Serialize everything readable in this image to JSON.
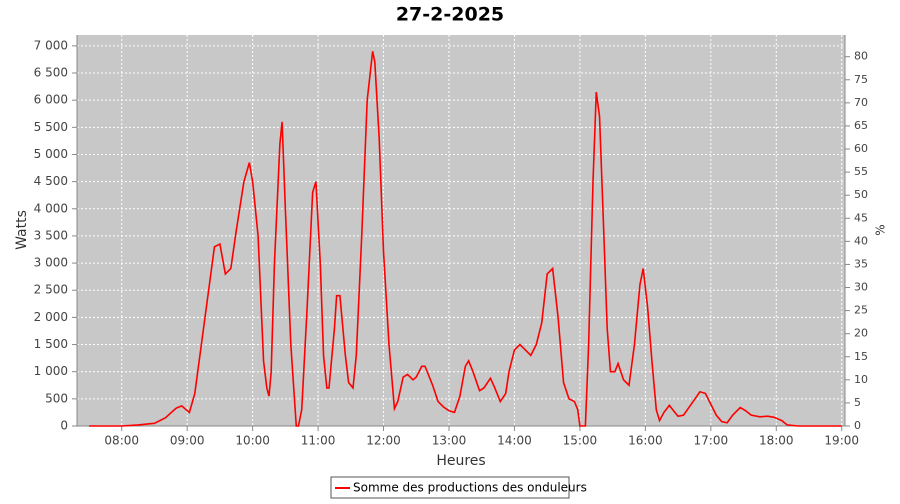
{
  "chart_data": {
    "type": "line",
    "title": "27-2-2025",
    "xlabel": "Heures",
    "ylabel": "Watts",
    "y2label": "%",
    "grid": true,
    "legend": "bottom",
    "xlim": [
      "07:19",
      "19:03"
    ],
    "xticks": [
      "08:00",
      "09:00",
      "10:00",
      "11:00",
      "12:00",
      "13:00",
      "14:00",
      "15:00",
      "16:00",
      "17:00",
      "18:00",
      "19:00"
    ],
    "ylim": [
      0,
      7200
    ],
    "yticks": [
      0,
      500,
      {
        "value": 1000,
        "label": "1 000"
      },
      {
        "value": 1500,
        "label": "1 500"
      },
      {
        "value": 2000,
        "label": "2 000"
      },
      {
        "value": 2500,
        "label": "2 500"
      },
      {
        "value": 3000,
        "label": "3 000"
      },
      {
        "value": 3500,
        "label": "3 500"
      },
      {
        "value": 4000,
        "label": "4 000"
      },
      {
        "value": 4500,
        "label": "4 500"
      },
      {
        "value": 5000,
        "label": "5 000"
      },
      {
        "value": 5500,
        "label": "5 500"
      },
      {
        "value": 6000,
        "label": "6 000"
      },
      {
        "value": 6500,
        "label": "6 500"
      },
      {
        "value": 7000,
        "label": "7 000"
      }
    ],
    "y2lim": [
      0,
      84.7
    ],
    "y2ticks": [
      0,
      5,
      10,
      15,
      20,
      25,
      30,
      35,
      40,
      45,
      50,
      55,
      60,
      65,
      70,
      75,
      80
    ],
    "x": [
      "07:30",
      "08:00",
      "08:15",
      "08:30",
      "08:40",
      "08:50",
      "08:55",
      "09:02",
      "09:07",
      "09:15",
      "09:25",
      "09:30",
      "09:35",
      "09:40",
      "09:45",
      "09:52",
      "09:57",
      "10:00",
      "10:05",
      "10:10",
      "10:13",
      "10:15",
      "10:17",
      "10:20",
      "10:25",
      "10:27",
      "10:30",
      "10:35",
      "10:40",
      "10:42",
      "10:45",
      "10:50",
      "10:55",
      "10:58",
      "11:02",
      "11:05",
      "11:08",
      "11:10",
      "11:15",
      "11:17",
      "11:20",
      "11:25",
      "11:28",
      "11:32",
      "11:35",
      "11:40",
      "11:45",
      "11:50",
      "11:52",
      "11:56",
      "12:00",
      "12:05",
      "12:10",
      "12:13",
      "12:18",
      "12:22",
      "12:27",
      "12:30",
      "12:35",
      "12:38",
      "12:45",
      "12:50",
      "12:55",
      "13:00",
      "13:05",
      "13:10",
      "13:15",
      "13:18",
      "13:22",
      "13:28",
      "13:32",
      "13:38",
      "13:42",
      "13:47",
      "13:52",
      "13:55",
      "14:00",
      "14:05",
      "14:10",
      "14:15",
      "14:20",
      "14:25",
      "14:30",
      "14:35",
      "14:40",
      "14:45",
      "14:50",
      "14:55",
      "14:58",
      "15:00",
      "15:05",
      "15:08",
      "15:12",
      "15:15",
      "15:18",
      "15:22",
      "15:25",
      "15:28",
      "15:32",
      "15:35",
      "15:40",
      "15:45",
      "15:50",
      "15:55",
      "15:58",
      "16:02",
      "16:06",
      "16:10",
      "16:13",
      "16:17",
      "16:22",
      "16:27",
      "16:30",
      "16:35",
      "16:42",
      "16:50",
      "16:55",
      "17:00",
      "17:05",
      "17:10",
      "17:15",
      "17:20",
      "17:27",
      "17:32",
      "17:37",
      "17:45",
      "17:52",
      "17:58",
      "18:05",
      "18:10",
      "18:20",
      "19:00"
    ],
    "series": [
      {
        "name": "Somme des productions des onduleurs",
        "color": "#ff0000",
        "values": [
          0,
          0,
          20,
          50,
          150,
          330,
          370,
          250,
          600,
          1800,
          3300,
          3350,
          2800,
          2900,
          3600,
          4500,
          4850,
          4500,
          3500,
          1200,
          700,
          550,
          1000,
          3000,
          5200,
          5600,
          4000,
          1500,
          0,
          0,
          300,
          2200,
          4300,
          4500,
          3000,
          1300,
          700,
          700,
          1800,
          2400,
          2400,
          1300,
          800,
          700,
          1300,
          3500,
          6000,
          6900,
          6700,
          5300,
          3200,
          1500,
          320,
          450,
          900,
          950,
          850,
          900,
          1100,
          1100,
          750,
          450,
          350,
          280,
          250,
          550,
          1100,
          1200,
          1000,
          650,
          700,
          880,
          700,
          450,
          600,
          1000,
          1400,
          1500,
          1400,
          1300,
          1500,
          1900,
          2800,
          2900,
          2000,
          800,
          500,
          450,
          300,
          0,
          0,
          1500,
          4500,
          6150,
          5700,
          3500,
          1800,
          1000,
          1000,
          1150,
          850,
          750,
          1500,
          2600,
          2900,
          2200,
          1200,
          300,
          100,
          250,
          380,
          250,
          180,
          200,
          400,
          630,
          600,
          400,
          200,
          80,
          60,
          200,
          340,
          280,
          200,
          170,
          180,
          160,
          100,
          20,
          0,
          0
        ]
      }
    ]
  }
}
